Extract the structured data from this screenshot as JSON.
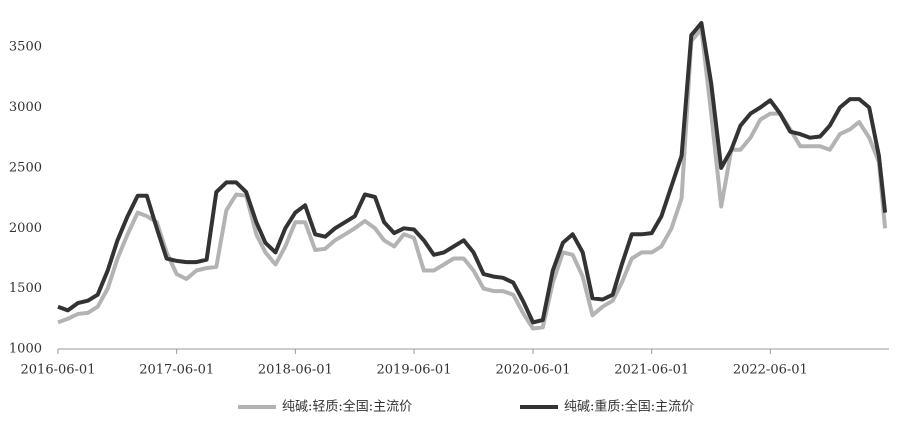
{
  "chart_data": {
    "type": "line",
    "x": [
      "2016-06-01",
      "2016-07-01",
      "2016-08-01",
      "2016-09-01",
      "2016-10-01",
      "2016-11-01",
      "2016-12-01",
      "2017-01-01",
      "2017-02-01",
      "2017-03-01",
      "2017-04-01",
      "2017-05-01",
      "2017-06-01",
      "2017-07-01",
      "2017-08-01",
      "2017-09-01",
      "2017-10-01",
      "2017-11-01",
      "2017-12-01",
      "2018-01-01",
      "2018-02-01",
      "2018-03-01",
      "2018-04-01",
      "2018-05-01",
      "2018-06-01",
      "2018-07-01",
      "2018-08-01",
      "2018-09-01",
      "2018-10-01",
      "2018-11-01",
      "2018-12-01",
      "2019-01-01",
      "2019-02-01",
      "2019-03-01",
      "2019-04-01",
      "2019-05-01",
      "2019-06-01",
      "2019-07-01",
      "2019-08-01",
      "2019-09-01",
      "2019-10-01",
      "2019-11-01",
      "2019-12-01",
      "2020-01-01",
      "2020-02-01",
      "2020-03-01",
      "2020-04-01",
      "2020-05-01",
      "2020-06-01",
      "2020-07-01",
      "2020-08-01",
      "2020-09-01",
      "2020-10-01",
      "2020-11-01",
      "2020-12-01",
      "2021-01-01",
      "2021-02-01",
      "2021-03-01",
      "2021-04-01",
      "2021-05-01",
      "2021-06-01",
      "2021-07-01",
      "2021-08-01",
      "2021-09-01",
      "2021-10-01",
      "2021-11-01",
      "2021-12-01",
      "2022-01-01",
      "2022-02-01",
      "2022-03-01",
      "2022-04-01",
      "2022-05-01",
      "2022-06-01",
      "2022-07-01",
      "2022-08-01",
      "2022-09-01",
      "2022-10-01",
      "2022-11-01",
      "2022-12-01",
      "2023-01-01",
      "2023-02-01",
      "2023-03-01",
      "2023-04-01",
      "2023-05-01",
      "2023-05-20"
    ],
    "series": [
      {
        "name": "纯碱:轻质:全国:主流价",
        "color": "#b3b3b3",
        "values": [
          1220,
          1250,
          1290,
          1300,
          1350,
          1500,
          1750,
          1950,
          2130,
          2100,
          2050,
          1800,
          1620,
          1580,
          1650,
          1670,
          1680,
          2150,
          2280,
          2270,
          1950,
          1800,
          1700,
          1850,
          2050,
          2050,
          1820,
          1830,
          1900,
          1950,
          2000,
          2060,
          2000,
          1900,
          1850,
          1950,
          1920,
          1650,
          1650,
          1700,
          1750,
          1750,
          1650,
          1500,
          1480,
          1480,
          1450,
          1300,
          1170,
          1180,
          1550,
          1800,
          1780,
          1600,
          1280,
          1350,
          1400,
          1550,
          1750,
          1800,
          1800,
          1850,
          2000,
          2250,
          3550,
          3650,
          2950,
          2180,
          2650,
          2650,
          2750,
          2900,
          2950,
          2950,
          2820,
          2680,
          2680,
          2680,
          2650,
          2780,
          2820,
          2880,
          2750,
          2550,
          2000
        ]
      },
      {
        "name": "纯碱:重质:全国:主流价",
        "color": "#333333",
        "values": [
          1350,
          1320,
          1380,
          1400,
          1450,
          1650,
          1900,
          2100,
          2270,
          2270,
          2000,
          1750,
          1730,
          1720,
          1720,
          1740,
          2300,
          2380,
          2380,
          2300,
          2050,
          1880,
          1800,
          2000,
          2130,
          2190,
          1950,
          1930,
          2000,
          2050,
          2100,
          2280,
          2260,
          2050,
          1960,
          2000,
          1990,
          1900,
          1780,
          1800,
          1850,
          1900,
          1800,
          1620,
          1600,
          1590,
          1550,
          1400,
          1220,
          1240,
          1650,
          1880,
          1950,
          1800,
          1420,
          1410,
          1450,
          1700,
          1950,
          1950,
          1960,
          2100,
          2350,
          2600,
          3600,
          3700,
          3200,
          2500,
          2650,
          2850,
          2950,
          3000,
          3060,
          2950,
          2800,
          2780,
          2750,
          2760,
          2850,
          3000,
          3070,
          3070,
          3000,
          2600,
          2130
        ]
      }
    ],
    "xlim": [
      "2016-06-01",
      "2023-06-01"
    ],
    "xticks": [
      "2016-06-01",
      "2017-06-01",
      "2018-06-01",
      "2019-06-01",
      "2020-06-01",
      "2021-06-01",
      "2022-06-01"
    ],
    "ylim": [
      1000,
      3750
    ],
    "yticks": [
      1000,
      1500,
      2000,
      2500,
      3000,
      3500
    ],
    "grid": false,
    "legend": "bottom"
  }
}
